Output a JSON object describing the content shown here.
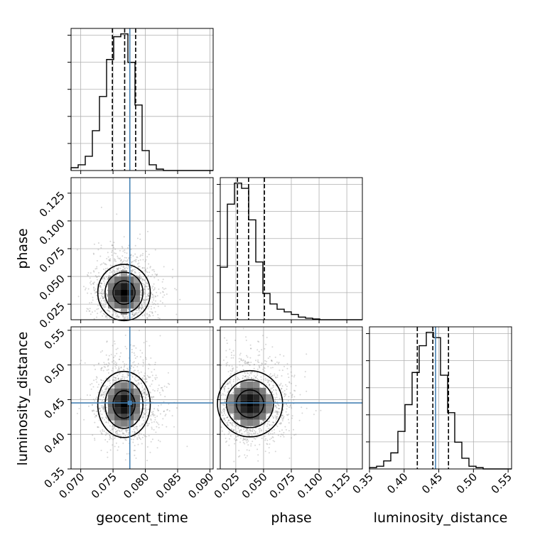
{
  "chart_data": {
    "type": "corner",
    "parameters": [
      "geocent_time",
      "phase",
      "luminosity_distance"
    ],
    "truths": [
      0.0776,
      null,
      0.4453
    ],
    "ranges": [
      [
        0.0685,
        0.0905
      ],
      [
        0.011,
        0.139
      ],
      [
        0.35,
        0.555
      ]
    ],
    "ticks": [
      [
        "0.070",
        "0.075",
        "0.080",
        "0.085",
        "0.090"
      ],
      [
        "0.025",
        "0.050",
        "0.075",
        "0.100",
        "0.125"
      ],
      [
        "0.35",
        "0.40",
        "0.45",
        "0.50",
        "0.55"
      ]
    ],
    "quantiles": [
      [
        0.0749,
        0.0768,
        0.0785
      ],
      [
        0.0265,
        0.0365,
        0.0508
      ],
      [
        0.419,
        0.4414,
        0.464
      ]
    ],
    "histograms": [
      {
        "counts": [
          1,
          2,
          5,
          14,
          26,
          39,
          47,
          48,
          38,
          23,
          7,
          2,
          0.5,
          0,
          0,
          0,
          0,
          0,
          0,
          0
        ]
      },
      {
        "counts": [
          20,
          44,
          52,
          50,
          38,
          22,
          10,
          6,
          4,
          3,
          2,
          1,
          0.6,
          0.3,
          0,
          0,
          0,
          0,
          0,
          0
        ]
      },
      {
        "counts": [
          0.5,
          1,
          3,
          6,
          14,
          24,
          36,
          46,
          51,
          49,
          35,
          21,
          10,
          4,
          1,
          0.5,
          0,
          0,
          0,
          0
        ]
      }
    ],
    "gaussian_2d": [
      {
        "x": 0,
        "y": 1,
        "mx": 0.0767,
        "my": 0.0355,
        "sx": 0.0018,
        "sy": 0.0118
      },
      {
        "x": 0,
        "y": 2,
        "mx": 0.0767,
        "my": 0.443,
        "sx": 0.0018,
        "sy": 0.0222
      },
      {
        "x": 1,
        "y": 2,
        "mx": 0.0378,
        "my": 0.444,
        "sx": 0.013,
        "sy": 0.0222
      }
    ]
  }
}
